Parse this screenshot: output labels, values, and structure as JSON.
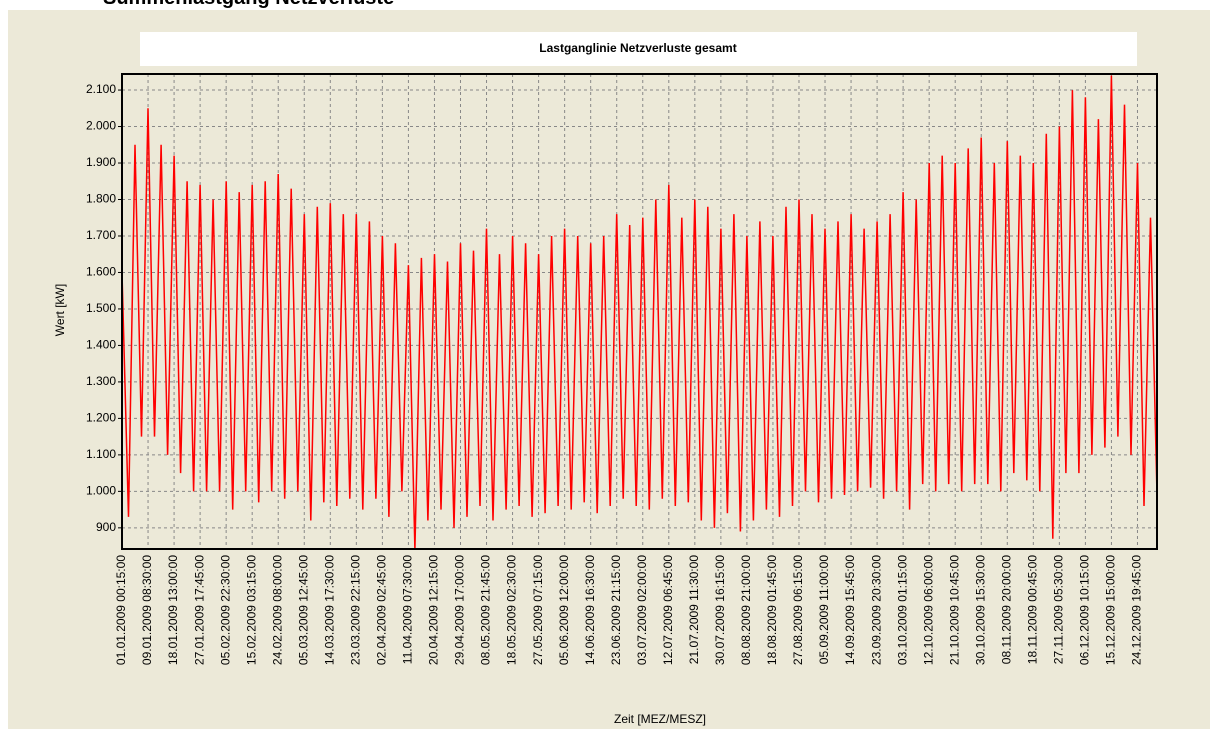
{
  "header": {
    "title": "Summenlastgang Netzverluste"
  },
  "chart_data": {
    "type": "line",
    "title": "Lastganglinie Netzverluste gesamt",
    "xlabel": "Zeit [MEZ/MESZ]",
    "ylabel": "Wert [kW]",
    "grid": true,
    "ylim": [
      842,
      2144
    ],
    "yticks": [
      900,
      {
        "value": 1000,
        "label": "1.000"
      },
      {
        "value": 1100,
        "label": "1.100"
      },
      {
        "value": 1200,
        "label": "1.200"
      },
      {
        "value": 1300,
        "label": "1.300"
      },
      {
        "value": 1400,
        "label": "1.400"
      },
      {
        "value": 1500,
        "label": "1.500"
      },
      {
        "value": 1600,
        "label": "1.600"
      },
      {
        "value": 1700,
        "label": "1.700"
      },
      {
        "value": 1800,
        "label": "1.800"
      },
      {
        "value": 1900,
        "label": "1.900"
      },
      {
        "value": 2000,
        "label": "2.000"
      },
      {
        "value": 2100,
        "label": "2.100"
      }
    ],
    "categories": [
      "01.01.2009 00:15:00",
      null,
      null,
      null,
      "09.01.2009 08:30:00",
      null,
      null,
      null,
      "18.01.2009 13:00:00",
      null,
      null,
      null,
      "27.01.2009 17:45:00",
      null,
      null,
      null,
      "05.02.2009 22:30:00",
      null,
      null,
      null,
      "15.02.2009 03:15:00",
      null,
      null,
      null,
      "24.02.2009 08:00:00",
      null,
      null,
      null,
      "05.03.2009 12:45:00",
      null,
      null,
      null,
      "14.03.2009 17:30:00",
      null,
      null,
      null,
      "23.03.2009 22:15:00",
      null,
      null,
      null,
      "02.04.2009 02:45:00",
      null,
      null,
      null,
      "11.04.2009 07:30:00",
      null,
      null,
      null,
      "20.04.2009 12:15:00",
      null,
      null,
      null,
      "29.04.2009 17:00:00",
      null,
      null,
      null,
      "08.05.2009 21:45:00",
      null,
      null,
      null,
      "18.05.2009 02:30:00",
      null,
      null,
      null,
      "27.05.2009 07:15:00",
      null,
      null,
      null,
      "05.06.2009 12:00:00",
      null,
      null,
      null,
      "14.06.2009 16:30:00",
      null,
      null,
      null,
      "23.06.2009 21:15:00",
      null,
      null,
      null,
      "03.07.2009 02:00:00",
      null,
      null,
      null,
      "12.07.2009 06:45:00",
      null,
      null,
      null,
      "21.07.2009 11:30:00",
      null,
      null,
      null,
      "30.07.2009 16:15:00",
      null,
      null,
      null,
      "08.08.2009 21:00:00",
      null,
      null,
      null,
      "18.08.2009 01:45:00",
      null,
      null,
      null,
      "27.08.2009 06:15:00",
      null,
      null,
      null,
      "05.09.2009 11:00:00",
      null,
      null,
      null,
      "14.09.2009 15:45:00",
      null,
      null,
      null,
      "23.09.2009 20:30:00",
      null,
      null,
      null,
      "03.10.2009 01:15:00",
      null,
      null,
      null,
      "12.10.2009 06:00:00",
      null,
      null,
      null,
      "21.10.2009 10:45:00",
      null,
      null,
      null,
      "30.10.2009 15:30:00",
      null,
      null,
      null,
      "08.11.2009 20:00:00",
      null,
      null,
      null,
      "18.11.2009 00:45:00",
      null,
      null,
      null,
      "27.11.2009 05:30:00",
      null,
      null,
      null,
      "06.12.2009 10:15:00",
      null,
      null,
      null,
      "15.12.2009 15:00:00",
      null,
      null,
      null,
      "24.12.2009 19:45:00",
      null,
      null,
      null
    ],
    "series": [
      {
        "name": "Netzverluste gesamt",
        "color": "#ff0000",
        "values": [
          1600,
          930,
          1950,
          1150,
          2050,
          1150,
          1950,
          1100,
          1920,
          1050,
          1850,
          1000,
          1840,
          1000,
          1800,
          1000,
          1850,
          950,
          1820,
          1000,
          1840,
          970,
          1850,
          1000,
          1870,
          980,
          1830,
          1000,
          1760,
          920,
          1780,
          970,
          1790,
          960,
          1760,
          980,
          1760,
          950,
          1740,
          980,
          1700,
          930,
          1680,
          1000,
          1620,
          840,
          1640,
          920,
          1650,
          950,
          1630,
          900,
          1680,
          930,
          1660,
          960,
          1720,
          920,
          1650,
          950,
          1700,
          960,
          1680,
          930,
          1650,
          940,
          1700,
          960,
          1720,
          950,
          1700,
          970,
          1680,
          940,
          1700,
          960,
          1760,
          980,
          1730,
          960,
          1750,
          950,
          1800,
          980,
          1840,
          960,
          1750,
          970,
          1800,
          920,
          1780,
          900,
          1720,
          940,
          1760,
          890,
          1700,
          920,
          1740,
          950,
          1700,
          930,
          1780,
          960,
          1800,
          1000,
          1760,
          970,
          1720,
          980,
          1740,
          990,
          1760,
          1000,
          1720,
          1010,
          1740,
          980,
          1760,
          1000,
          1820,
          950,
          1800,
          1020,
          1900,
          1000,
          1920,
          1020,
          1900,
          1000,
          1940,
          1020,
          1970,
          1020,
          1900,
          1000,
          1960,
          1050,
          1920,
          1030,
          1900,
          1000,
          1980,
          870,
          2000,
          1050,
          2100,
          1050,
          2080,
          1100,
          2020,
          1120,
          2140,
          1150,
          2060,
          1100,
          1900,
          960,
          1750,
          990
        ]
      }
    ]
  }
}
